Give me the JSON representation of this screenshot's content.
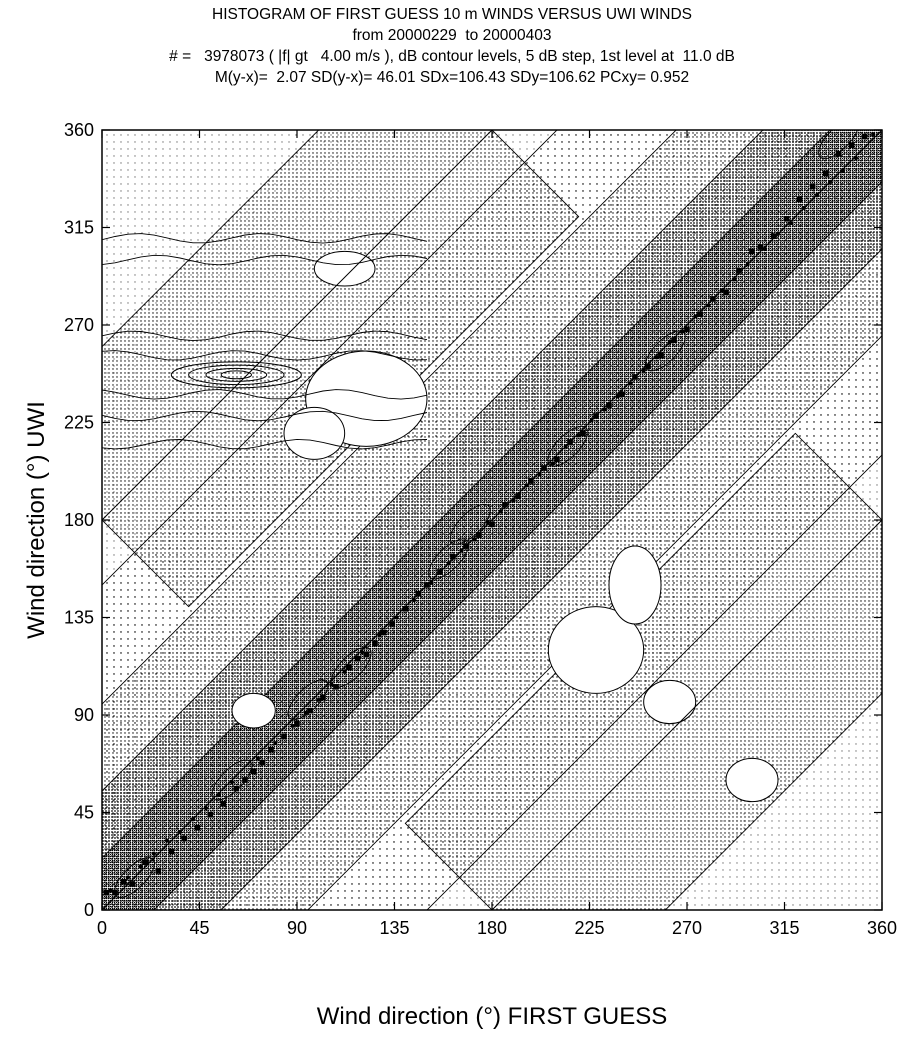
{
  "chart_data": {
    "type": "heatmap",
    "title_lines": [
      "HISTOGRAM OF FIRST GUESS 10 m WINDS VERSUS UWI WINDS",
      "from 20000229  to 20000403",
      "# =   3978073 ( |f| gt   4.00 m/s ), dB contour levels, 5 dB step, 1st level at  11.0 dB",
      "M(y-x)=  2.07 SD(y-x)= 46.01 SDx=106.43 SDy=106.62 PCxy= 0.952"
    ],
    "xlabel": "Wind direction (°) FIRST GUESS",
    "ylabel": "Wind direction (°)     UWI",
    "xlim": [
      0,
      360
    ],
    "ylim": [
      0,
      360
    ],
    "x_ticks": [
      "0",
      "45",
      "90",
      "135",
      "180",
      "225",
      "270",
      "315",
      "360"
    ],
    "y_ticks": [
      "0",
      "45",
      "90",
      "135",
      "180",
      "225",
      "270",
      "315",
      "360"
    ],
    "reference_lines": [
      {
        "x": [
          0,
          360
        ],
        "y": [
          0,
          360
        ]
      },
      {
        "x": [
          0,
          180
        ],
        "y": [
          180,
          360
        ]
      },
      {
        "x": [
          180,
          360
        ],
        "y": [
          0,
          180
        ]
      }
    ],
    "square_markers": [
      [
        2,
        8
      ],
      [
        6,
        8
      ],
      [
        10,
        13
      ],
      [
        14,
        12
      ],
      [
        20,
        22
      ],
      [
        26,
        18
      ],
      [
        32,
        27
      ],
      [
        38,
        33
      ],
      [
        44,
        38
      ],
      [
        50,
        44
      ],
      [
        56,
        49
      ],
      [
        62,
        56
      ],
      [
        66,
        60
      ],
      [
        70,
        64
      ],
      [
        74,
        68
      ],
      [
        78,
        74
      ],
      [
        84,
        80
      ],
      [
        90,
        86
      ],
      [
        96,
        92
      ],
      [
        102,
        98
      ],
      [
        108,
        103
      ],
      [
        114,
        112
      ],
      [
        118,
        116
      ],
      [
        122,
        118
      ],
      [
        126,
        123
      ],
      [
        130,
        128
      ],
      [
        134,
        132
      ],
      [
        140,
        139
      ],
      [
        146,
        146
      ],
      [
        150,
        150
      ],
      [
        156,
        156
      ],
      [
        162,
        163
      ],
      [
        168,
        168
      ],
      [
        174,
        173
      ],
      [
        180,
        178
      ],
      [
        186,
        187
      ],
      [
        192,
        191
      ],
      [
        198,
        198
      ],
      [
        204,
        204
      ],
      [
        210,
        208
      ],
      [
        216,
        216
      ],
      [
        222,
        220
      ],
      [
        228,
        228
      ],
      [
        234,
        233
      ],
      [
        240,
        238
      ],
      [
        246,
        246
      ],
      [
        252,
        251
      ],
      [
        258,
        256
      ],
      [
        264,
        263
      ],
      [
        270,
        268
      ],
      [
        276,
        275
      ],
      [
        282,
        282
      ],
      [
        288,
        285
      ],
      [
        294,
        295
      ],
      [
        300,
        304
      ],
      [
        304,
        306
      ],
      [
        310,
        311
      ],
      [
        316,
        319
      ],
      [
        322,
        328
      ],
      [
        328,
        334
      ],
      [
        334,
        340
      ],
      [
        340,
        349
      ],
      [
        346,
        353
      ],
      [
        352,
        357
      ]
    ],
    "dot_markers": [
      [
        4,
        9
      ],
      [
        12,
        15
      ],
      [
        18,
        20
      ],
      [
        24,
        26
      ],
      [
        30,
        32
      ],
      [
        36,
        36
      ],
      [
        42,
        42
      ],
      [
        48,
        47
      ],
      [
        54,
        53
      ],
      [
        60,
        59
      ],
      [
        72,
        70
      ],
      [
        80,
        77
      ],
      [
        88,
        85
      ],
      [
        94,
        91
      ],
      [
        100,
        97
      ],
      [
        106,
        104
      ],
      [
        112,
        110
      ],
      [
        120,
        119
      ],
      [
        128,
        127
      ],
      [
        136,
        135
      ],
      [
        144,
        143
      ],
      [
        152,
        151
      ],
      [
        160,
        160
      ],
      [
        166,
        166
      ],
      [
        172,
        171
      ],
      [
        178,
        179
      ],
      [
        184,
        184
      ],
      [
        190,
        189
      ],
      [
        196,
        196
      ],
      [
        202,
        201
      ],
      [
        208,
        206
      ],
      [
        214,
        214
      ],
      [
        220,
        219
      ],
      [
        226,
        226
      ],
      [
        232,
        231
      ],
      [
        238,
        237
      ],
      [
        244,
        243
      ],
      [
        250,
        249
      ],
      [
        256,
        255
      ],
      [
        262,
        262
      ],
      [
        268,
        267
      ],
      [
        274,
        274
      ],
      [
        280,
        279
      ],
      [
        286,
        286
      ],
      [
        292,
        291
      ],
      [
        298,
        298
      ],
      [
        306,
        305
      ],
      [
        312,
        312
      ],
      [
        318,
        317
      ],
      [
        324,
        324
      ],
      [
        330,
        330
      ],
      [
        336,
        336
      ],
      [
        342,
        341
      ],
      [
        348,
        347
      ],
      [
        356,
        358
      ]
    ],
    "contour_levels_db": [
      11.0,
      16.0,
      21.0,
      26.0,
      31.0
    ],
    "colors": {
      "foreground": "#000000",
      "background": "#ffffff"
    }
  }
}
